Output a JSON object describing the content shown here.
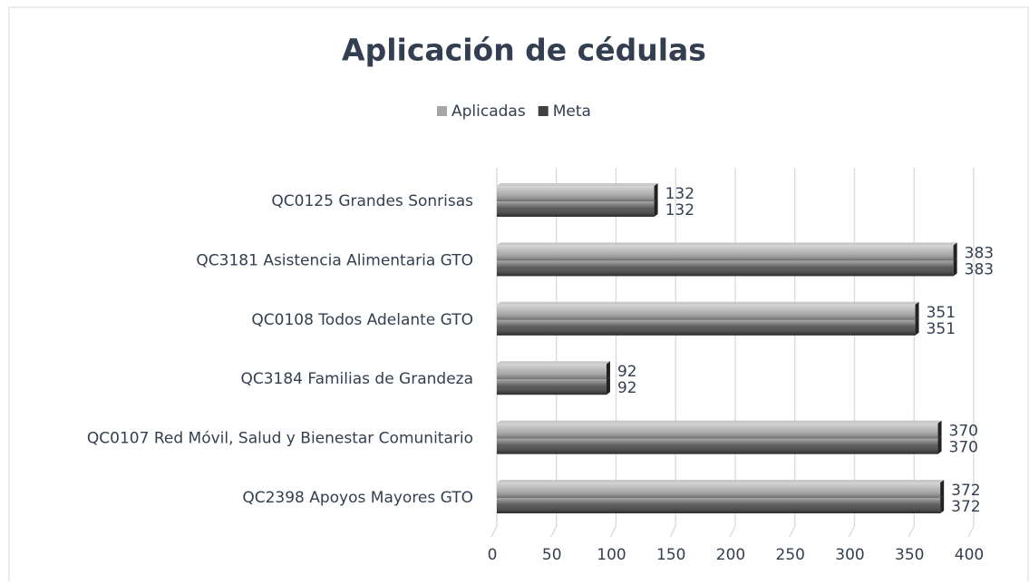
{
  "chart_data": {
    "type": "bar",
    "orientation": "horizontal",
    "title": "Aplicación de cédulas",
    "categories": [
      "QC0125 Grandes Sonrisas",
      "QC3181 Asistencia Alimentaria GTO",
      "QC0108 Todos Adelante GTO",
      "QC3184 Familias de Grandeza",
      "QC0107 Red Móvil, Salud y Bienestar Comunitario",
      "QC2398 Apoyos Mayores GTO"
    ],
    "series": [
      {
        "name": "Aplicadas",
        "color": "#a6a6a6",
        "values": [
          132,
          383,
          351,
          92,
          370,
          372
        ]
      },
      {
        "name": "Meta",
        "color": "#404040",
        "values": [
          132,
          383,
          351,
          92,
          370,
          372
        ]
      }
    ],
    "xlim": [
      0,
      400
    ],
    "xticks": [
      0,
      50,
      100,
      150,
      200,
      250,
      300,
      350,
      400
    ],
    "grid": true,
    "legend": "top"
  }
}
